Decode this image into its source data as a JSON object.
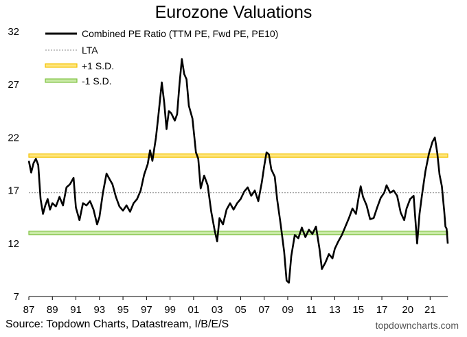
{
  "chart_data": {
    "type": "line",
    "title": "Eurozone Valuations",
    "xlabel": "",
    "ylabel": "",
    "ylim": [
      7,
      32
    ],
    "yticks": [
      7,
      12,
      17,
      22,
      27,
      32
    ],
    "xlim": [
      1987.0,
      2022.6
    ],
    "xticks": [
      {
        "label": "87",
        "year": 1987
      },
      {
        "label": "89",
        "year": 1989
      },
      {
        "label": "91",
        "year": 1991
      },
      {
        "label": "93",
        "year": 1993
      },
      {
        "label": "95",
        "year": 1995
      },
      {
        "label": "97",
        "year": 1997
      },
      {
        "label": "99",
        "year": 1999
      },
      {
        "label": "01",
        "year": 2001
      },
      {
        "label": "03",
        "year": 2003
      },
      {
        "label": "05",
        "year": 2005
      },
      {
        "label": "07",
        "year": 2007
      },
      {
        "label": "09",
        "year": 2009
      },
      {
        "label": "11",
        "year": 2011
      },
      {
        "label": "13",
        "year": 2013
      },
      {
        "label": "15",
        "year": 2015
      },
      {
        "label": "17",
        "year": 2017
      },
      {
        "label": "20",
        "year": 2019.2
      },
      {
        "label": "21",
        "year": 2021.1
      }
    ],
    "grid": false,
    "legend_position": "top-left",
    "series": [
      {
        "name": "Combined PE Ratio (TTM PE, Fwd PE, PE10)",
        "color": "#000000",
        "points": [
          [
            1987.0,
            19.8
          ],
          [
            1987.2,
            18.7
          ],
          [
            1987.4,
            19.6
          ],
          [
            1987.6,
            20.0
          ],
          [
            1987.8,
            19.4
          ],
          [
            1988.0,
            16.2
          ],
          [
            1988.2,
            14.8
          ],
          [
            1988.4,
            15.6
          ],
          [
            1988.6,
            16.2
          ],
          [
            1988.8,
            15.2
          ],
          [
            1989.0,
            15.8
          ],
          [
            1989.3,
            15.5
          ],
          [
            1989.6,
            16.4
          ],
          [
            1989.9,
            15.6
          ],
          [
            1990.2,
            17.3
          ],
          [
            1990.5,
            17.6
          ],
          [
            1990.8,
            18.2
          ],
          [
            1991.0,
            15.4
          ],
          [
            1991.3,
            14.2
          ],
          [
            1991.6,
            15.8
          ],
          [
            1991.9,
            15.6
          ],
          [
            1992.2,
            16.0
          ],
          [
            1992.5,
            15.2
          ],
          [
            1992.8,
            13.8
          ],
          [
            1993.0,
            14.5
          ],
          [
            1993.3,
            16.8
          ],
          [
            1993.6,
            18.6
          ],
          [
            1993.9,
            18.0
          ],
          [
            1994.1,
            17.6
          ],
          [
            1994.4,
            16.4
          ],
          [
            1994.7,
            15.5
          ],
          [
            1995.0,
            15.1
          ],
          [
            1995.3,
            15.6
          ],
          [
            1995.6,
            15.0
          ],
          [
            1995.9,
            15.8
          ],
          [
            1996.2,
            16.2
          ],
          [
            1996.5,
            17.0
          ],
          [
            1996.8,
            18.5
          ],
          [
            1997.1,
            19.5
          ],
          [
            1997.3,
            20.8
          ],
          [
            1997.5,
            19.8
          ],
          [
            1997.8,
            22.0
          ],
          [
            1998.0,
            24.0
          ],
          [
            1998.3,
            27.2
          ],
          [
            1998.5,
            25.3
          ],
          [
            1998.7,
            22.8
          ],
          [
            1998.9,
            24.5
          ],
          [
            1999.1,
            24.3
          ],
          [
            1999.4,
            23.6
          ],
          [
            1999.6,
            24.2
          ],
          [
            1999.8,
            27.0
          ],
          [
            2000.0,
            29.4
          ],
          [
            2000.2,
            28.0
          ],
          [
            2000.4,
            27.5
          ],
          [
            2000.6,
            25.0
          ],
          [
            2000.9,
            23.8
          ],
          [
            2001.2,
            20.6
          ],
          [
            2001.4,
            20.0
          ],
          [
            2001.6,
            17.2
          ],
          [
            2001.9,
            18.4
          ],
          [
            2002.2,
            17.5
          ],
          [
            2002.5,
            15.0
          ],
          [
            2002.8,
            13.2
          ],
          [
            2003.0,
            12.2
          ],
          [
            2003.2,
            14.4
          ],
          [
            2003.5,
            13.8
          ],
          [
            2003.8,
            15.2
          ],
          [
            2004.1,
            15.8
          ],
          [
            2004.4,
            15.2
          ],
          [
            2004.7,
            15.8
          ],
          [
            2005.0,
            16.2
          ],
          [
            2005.3,
            16.9
          ],
          [
            2005.6,
            17.3
          ],
          [
            2005.9,
            16.5
          ],
          [
            2006.2,
            17.0
          ],
          [
            2006.5,
            16.0
          ],
          [
            2006.8,
            17.8
          ],
          [
            2007.0,
            19.3
          ],
          [
            2007.2,
            20.6
          ],
          [
            2007.4,
            20.4
          ],
          [
            2007.6,
            19.0
          ],
          [
            2007.9,
            18.3
          ],
          [
            2008.1,
            16.2
          ],
          [
            2008.4,
            13.8
          ],
          [
            2008.7,
            11.2
          ],
          [
            2008.9,
            8.5
          ],
          [
            2009.1,
            8.3
          ],
          [
            2009.3,
            10.8
          ],
          [
            2009.6,
            12.8
          ],
          [
            2009.9,
            12.5
          ],
          [
            2010.2,
            13.5
          ],
          [
            2010.5,
            12.6
          ],
          [
            2010.8,
            13.3
          ],
          [
            2011.1,
            12.9
          ],
          [
            2011.4,
            13.6
          ],
          [
            2011.7,
            11.5
          ],
          [
            2011.9,
            9.6
          ],
          [
            2012.2,
            10.2
          ],
          [
            2012.5,
            11.0
          ],
          [
            2012.8,
            10.6
          ],
          [
            2013.0,
            11.5
          ],
          [
            2013.3,
            12.2
          ],
          [
            2013.6,
            12.8
          ],
          [
            2013.9,
            13.6
          ],
          [
            2014.2,
            14.4
          ],
          [
            2014.5,
            15.3
          ],
          [
            2014.8,
            14.8
          ],
          [
            2015.0,
            16.2
          ],
          [
            2015.2,
            17.4
          ],
          [
            2015.4,
            16.4
          ],
          [
            2015.7,
            15.6
          ],
          [
            2016.0,
            14.3
          ],
          [
            2016.3,
            14.4
          ],
          [
            2016.6,
            15.4
          ],
          [
            2016.9,
            16.3
          ],
          [
            2017.2,
            16.8
          ],
          [
            2017.4,
            17.5
          ],
          [
            2017.7,
            16.8
          ],
          [
            2018.0,
            17.0
          ],
          [
            2018.3,
            16.5
          ],
          [
            2018.6,
            14.9
          ],
          [
            2018.9,
            14.2
          ],
          [
            2019.1,
            15.3
          ],
          [
            2019.4,
            16.2
          ],
          [
            2019.7,
            16.5
          ],
          [
            2020.0,
            12.0
          ],
          [
            2020.2,
            14.8
          ],
          [
            2020.4,
            16.5
          ],
          [
            2020.7,
            18.8
          ],
          [
            2021.0,
            20.5
          ],
          [
            2021.3,
            21.6
          ],
          [
            2021.5,
            22.0
          ],
          [
            2021.7,
            20.6
          ],
          [
            2021.9,
            18.5
          ],
          [
            2022.1,
            17.4
          ],
          [
            2022.3,
            15.0
          ],
          [
            2022.4,
            13.6
          ],
          [
            2022.5,
            13.4
          ],
          [
            2022.6,
            12.0
          ]
        ]
      },
      {
        "name": "LTA",
        "color": "#888888",
        "value": 16.8
      },
      {
        "name": "+1 S.D.",
        "color": "#f2c200",
        "value": 20.3
      },
      {
        "name": "-1 S.D.",
        "color": "#7fc241",
        "value": 13.0
      }
    ],
    "source": "Source: Topdown Charts, Datastream, I/B/E/S",
    "brand": "topdowncharts.com"
  }
}
